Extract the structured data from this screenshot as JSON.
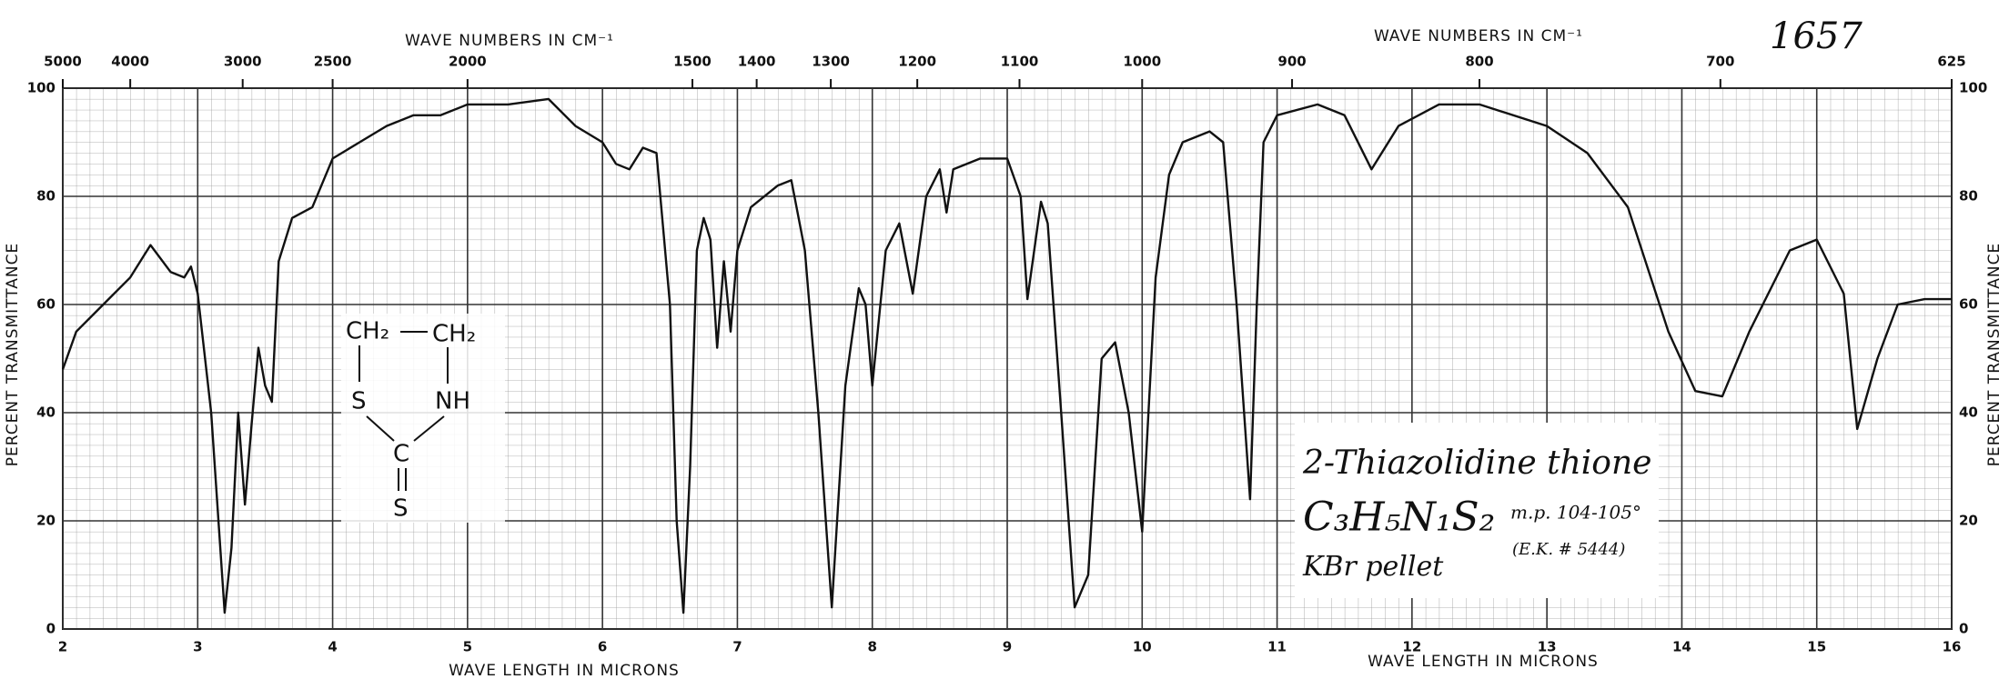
{
  "chart_data": {
    "type": "line",
    "serial": "1657",
    "xlabel": "WAVE LENGTH IN MICRONS",
    "x2label": "WAVE NUMBERS IN CM⁻¹",
    "ylabel": "PERCENT TRANSMITTANCE",
    "xlim": [
      2,
      16
    ],
    "xticks": [
      2,
      3,
      4,
      5,
      6,
      7,
      8,
      9,
      10,
      11,
      12,
      13,
      14,
      15,
      16
    ],
    "x2ticks": [
      5000,
      4000,
      3000,
      2500,
      2000,
      1500,
      1400,
      1300,
      1200,
      1100,
      1000,
      900,
      800,
      700,
      625
    ],
    "ylim": [
      0,
      100
    ],
    "yticks": [
      0,
      20,
      40,
      60,
      80,
      100
    ],
    "grid": true,
    "x": [
      2.0,
      2.1,
      2.3,
      2.5,
      2.65,
      2.8,
      2.9,
      2.95,
      3.0,
      3.1,
      3.2,
      3.25,
      3.3,
      3.35,
      3.4,
      3.45,
      3.5,
      3.55,
      3.6,
      3.7,
      3.85,
      4.0,
      4.2,
      4.4,
      4.6,
      4.8,
      5.0,
      5.3,
      5.6,
      5.8,
      6.0,
      6.1,
      6.2,
      6.3,
      6.4,
      6.5,
      6.55,
      6.6,
      6.65,
      6.7,
      6.75,
      6.8,
      6.85,
      6.9,
      6.95,
      7.0,
      7.1,
      7.3,
      7.4,
      7.5,
      7.6,
      7.7,
      7.8,
      7.9,
      7.95,
      8.0,
      8.1,
      8.2,
      8.3,
      8.4,
      8.5,
      8.55,
      8.6,
      8.8,
      9.0,
      9.1,
      9.15,
      9.25,
      9.3,
      9.4,
      9.5,
      9.6,
      9.7,
      9.8,
      9.9,
      10.0,
      10.1,
      10.2,
      10.3,
      10.5,
      10.6,
      10.7,
      10.8,
      10.85,
      10.9,
      11.0,
      11.3,
      11.5,
      11.7,
      11.9,
      12.2,
      12.5,
      13.0,
      13.3,
      13.6,
      13.9,
      14.1,
      14.3,
      14.5,
      14.8,
      15.0,
      15.2,
      15.3,
      15.45,
      15.6,
      15.8,
      16.0
    ],
    "series": [
      {
        "color": "#111111",
        "values": [
          48,
          55,
          60,
          65,
          71,
          66,
          65,
          67,
          62,
          40,
          3,
          15,
          40,
          23,
          38,
          52,
          45,
          42,
          68,
          76,
          78,
          87,
          90,
          93,
          95,
          95,
          97,
          97,
          98,
          93,
          90,
          86,
          85,
          89,
          88,
          60,
          20,
          3,
          30,
          70,
          76,
          72,
          52,
          68,
          55,
          70,
          78,
          82,
          83,
          70,
          40,
          4,
          45,
          63,
          60,
          45,
          70,
          75,
          62,
          80,
          85,
          77,
          85,
          87,
          87,
          80,
          61,
          79,
          75,
          40,
          4,
          10,
          50,
          53,
          40,
          18,
          65,
          84,
          90,
          92,
          90,
          60,
          24,
          60,
          90,
          95,
          97,
          95,
          85,
          93,
          97,
          97,
          93,
          88,
          78,
          55,
          44,
          43,
          55,
          70,
          72,
          62,
          37,
          50,
          60,
          61,
          61
        ]
      }
    ],
    "annotation": {
      "name": "2-Thiazolidine thione",
      "formula": "C₃H₅N₁S₂",
      "mp": "m.p. 104-105°",
      "ref": "(E.K. # 5444)",
      "medium": "KBr pellet"
    },
    "structure": {
      "ch2a": "CH₂",
      "ch2b": "CH₂",
      "s1": "S",
      "nh": "NH",
      "c": "C",
      "s2": "S"
    }
  }
}
